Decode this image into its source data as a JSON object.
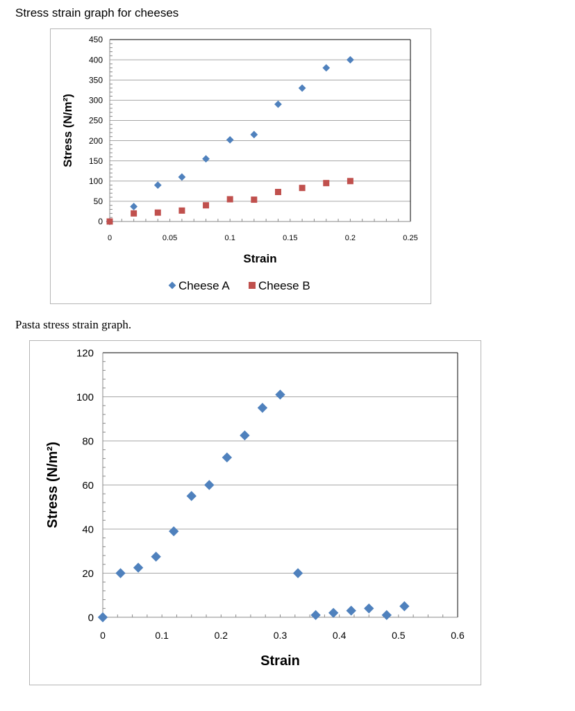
{
  "chart_data": [
    {
      "type": "scatter",
      "title": "Stress strain graph for cheeses",
      "xlabel": "Strain",
      "ylabel": "Stress (N/m²)",
      "xlim": [
        0,
        0.25
      ],
      "ylim": [
        0,
        450
      ],
      "xticks": [
        "0",
        "0.05",
        "0.1",
        "0.15",
        "0.2",
        "0.25"
      ],
      "yticks": [
        "0",
        "50",
        "100",
        "150",
        "200",
        "250",
        "300",
        "350",
        "400",
        "450"
      ],
      "grid": true,
      "legend": "bottom",
      "series": [
        {
          "name": "Cheese A",
          "marker": "diamond",
          "color": "#4f81bd",
          "x": [
            0,
            0.02,
            0.04,
            0.06,
            0.08,
            0.1,
            0.12,
            0.14,
            0.16,
            0.18,
            0.2
          ],
          "y": [
            0,
            37,
            90,
            110,
            155,
            202,
            215,
            290,
            330,
            380,
            400
          ]
        },
        {
          "name": "Cheese B",
          "marker": "square",
          "color": "#c0504d",
          "x": [
            0,
            0.02,
            0.04,
            0.06,
            0.08,
            0.1,
            0.12,
            0.14,
            0.16,
            0.18,
            0.2
          ],
          "y": [
            0,
            20,
            22,
            27,
            40,
            55,
            54,
            73,
            83,
            95,
            100
          ]
        }
      ]
    },
    {
      "type": "scatter",
      "title": "Pasta stress strain graph.",
      "xlabel": "Strain",
      "ylabel": "Stress (N/m²)",
      "xlim": [
        0,
        0.6
      ],
      "ylim": [
        0,
        120
      ],
      "xticks": [
        "0",
        "0.1",
        "0.2",
        "0.3",
        "0.4",
        "0.5",
        "0.6"
      ],
      "yticks": [
        "0",
        "20",
        "40",
        "60",
        "80",
        "100",
        "120"
      ],
      "grid": true,
      "legend": "none",
      "series": [
        {
          "marker": "diamond",
          "color": "#4f81bd",
          "x": [
            0,
            0.03,
            0.06,
            0.09,
            0.12,
            0.15,
            0.18,
            0.21,
            0.24,
            0.27,
            0.3,
            0.33,
            0.36,
            0.39,
            0.42,
            0.45,
            0.48,
            0.51
          ],
          "y": [
            0,
            20,
            22.5,
            27.5,
            39,
            55,
            60,
            72.5,
            82.5,
            95,
            101,
            20,
            1,
            2,
            3,
            4,
            1,
            5
          ]
        }
      ]
    }
  ]
}
